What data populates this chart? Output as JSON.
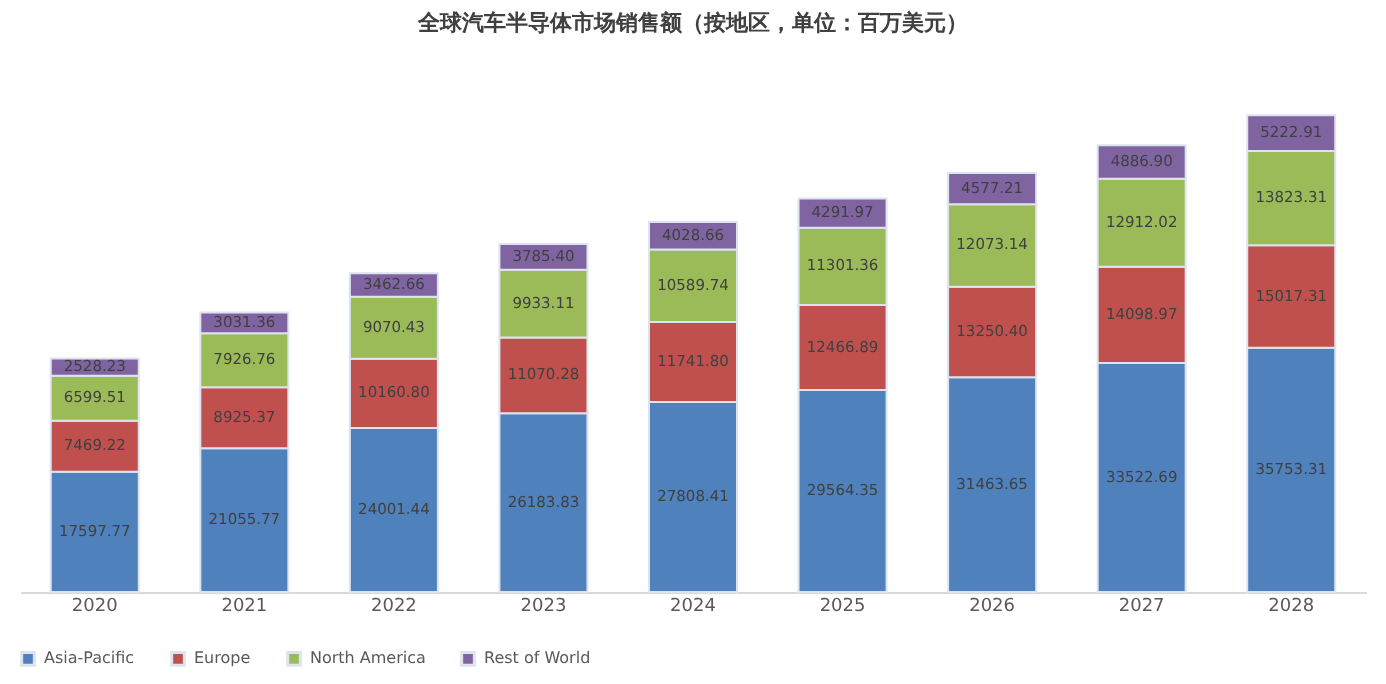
{
  "chart_data": {
    "type": "bar",
    "stacked": true,
    "title": "全球汽车半导体市场销售额（按地区，单位：百万美元）",
    "categories": [
      "2020",
      "2021",
      "2022",
      "2023",
      "2024",
      "2025",
      "2026",
      "2027",
      "2028"
    ],
    "series": [
      {
        "name": "Asia-Pacific",
        "color": "#4f81bd",
        "values": [
          17597.77,
          21055.77,
          24001.44,
          26183.83,
          27808.41,
          29564.35,
          31463.65,
          33522.69,
          35753.31
        ],
        "value_labels": [
          "17597.77",
          "21055.77",
          "24001.44",
          "26183.83",
          "27808.41",
          "29564.35",
          "31463.65",
          "33522.69",
          "35753.31"
        ]
      },
      {
        "name": "Europe",
        "color": "#c0504d",
        "values": [
          7469.22,
          8925.37,
          10160.8,
          11070.28,
          11741.8,
          12466.89,
          13250.4,
          14098.97,
          15017.31
        ],
        "value_labels": [
          "7469.22",
          "8925.37",
          "10160.80",
          "11070.28",
          "11741.80",
          "12466.89",
          "13250.40",
          "14098.97",
          "15017.31"
        ]
      },
      {
        "name": "North America",
        "color": "#9bbb59",
        "values": [
          6599.51,
          7926.76,
          9070.43,
          9933.11,
          10589.74,
          11301.36,
          12073.14,
          12912.02,
          13823.31
        ],
        "value_labels": [
          "6599.51",
          "7926.76",
          "9070.43",
          "9933.11",
          "10589.74",
          "11301.36",
          "12073.14",
          "12912.02",
          "13823.31"
        ]
      },
      {
        "name": "Rest of World",
        "color": "#8064a2",
        "values": [
          2528.23,
          3031.36,
          3462.66,
          3785.4,
          4028.66,
          4291.97,
          4577.21,
          4886.9,
          5222.91
        ],
        "value_labels": [
          "2528.23",
          "3031.36",
          "3462.66",
          "3785.40",
          "4028.66",
          "4291.97",
          "4577.21",
          "4886.90",
          "5222.91"
        ]
      }
    ],
    "legend": "bottom",
    "grid": false,
    "tick_labels": "x"
  }
}
